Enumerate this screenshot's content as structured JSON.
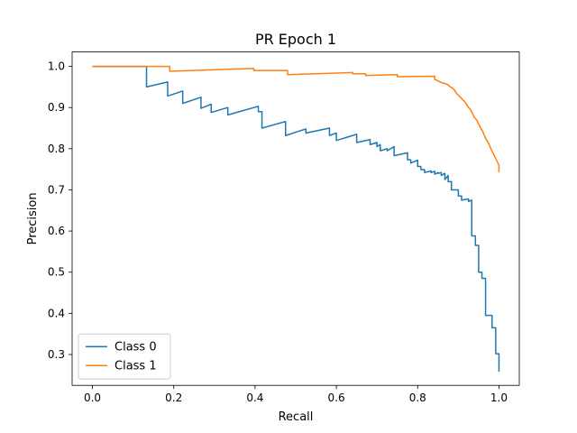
{
  "chart_data": {
    "type": "line",
    "title": "PR Epoch 1",
    "xlabel": "Recall",
    "ylabel": "Precision",
    "xlim": [
      -0.05,
      1.05
    ],
    "ylim": [
      0.225,
      1.035
    ],
    "xticks": [
      0.0,
      0.2,
      0.4,
      0.6,
      0.8,
      1.0
    ],
    "xtick_labels": [
      "0.0",
      "0.2",
      "0.4",
      "0.6",
      "0.8",
      "1.0"
    ],
    "yticks": [
      0.3,
      0.4,
      0.5,
      0.6,
      0.7,
      0.8,
      0.9,
      1.0
    ],
    "ytick_labels": [
      "0.3",
      "0.4",
      "0.5",
      "0.6",
      "0.7",
      "0.8",
      "0.9",
      "1.0"
    ],
    "grid": false,
    "legend": {
      "position": "lower-left"
    },
    "series": [
      {
        "name": "Class 0",
        "color": "#1f77b4",
        "step": "post",
        "points": [
          [
            0.0,
            1.0
          ],
          [
            0.133,
            1.0
          ],
          [
            0.133,
            0.95
          ],
          [
            0.185,
            0.962
          ],
          [
            0.185,
            0.928
          ],
          [
            0.222,
            0.94
          ],
          [
            0.222,
            0.91
          ],
          [
            0.267,
            0.925
          ],
          [
            0.267,
            0.898
          ],
          [
            0.292,
            0.908
          ],
          [
            0.292,
            0.888
          ],
          [
            0.333,
            0.9
          ],
          [
            0.333,
            0.882
          ],
          [
            0.408,
            0.903
          ],
          [
            0.408,
            0.89
          ],
          [
            0.417,
            0.89
          ],
          [
            0.417,
            0.85
          ],
          [
            0.475,
            0.866
          ],
          [
            0.475,
            0.832
          ],
          [
            0.525,
            0.848
          ],
          [
            0.525,
            0.838
          ],
          [
            0.583,
            0.85
          ],
          [
            0.583,
            0.832
          ],
          [
            0.6,
            0.838
          ],
          [
            0.6,
            0.82
          ],
          [
            0.65,
            0.835
          ],
          [
            0.65,
            0.815
          ],
          [
            0.683,
            0.822
          ],
          [
            0.683,
            0.81
          ],
          [
            0.7,
            0.815
          ],
          [
            0.7,
            0.805
          ],
          [
            0.708,
            0.81
          ],
          [
            0.708,
            0.795
          ],
          [
            0.725,
            0.8
          ],
          [
            0.725,
            0.795
          ],
          [
            0.742,
            0.805
          ],
          [
            0.742,
            0.783
          ],
          [
            0.775,
            0.79
          ],
          [
            0.775,
            0.773
          ],
          [
            0.783,
            0.773
          ],
          [
            0.783,
            0.765
          ],
          [
            0.8,
            0.772
          ],
          [
            0.8,
            0.757
          ],
          [
            0.808,
            0.757
          ],
          [
            0.808,
            0.749
          ],
          [
            0.817,
            0.749
          ],
          [
            0.817,
            0.742
          ],
          [
            0.833,
            0.746
          ],
          [
            0.833,
            0.742
          ],
          [
            0.842,
            0.745
          ],
          [
            0.842,
            0.738
          ],
          [
            0.85,
            0.742
          ],
          [
            0.85,
            0.74
          ],
          [
            0.858,
            0.742
          ],
          [
            0.858,
            0.735
          ],
          [
            0.867,
            0.74
          ],
          [
            0.867,
            0.725
          ],
          [
            0.875,
            0.735
          ],
          [
            0.875,
            0.72
          ],
          [
            0.883,
            0.72
          ],
          [
            0.883,
            0.7
          ],
          [
            0.9,
            0.7
          ],
          [
            0.9,
            0.685
          ],
          [
            0.908,
            0.685
          ],
          [
            0.908,
            0.675
          ],
          [
            0.925,
            0.678
          ],
          [
            0.925,
            0.672
          ],
          [
            0.933,
            0.675
          ],
          [
            0.933,
            0.588
          ],
          [
            0.942,
            0.588
          ],
          [
            0.942,
            0.565
          ],
          [
            0.95,
            0.565
          ],
          [
            0.95,
            0.5
          ],
          [
            0.958,
            0.5
          ],
          [
            0.958,
            0.485
          ],
          [
            0.967,
            0.485
          ],
          [
            0.967,
            0.395
          ],
          [
            0.983,
            0.395
          ],
          [
            0.983,
            0.365
          ],
          [
            0.992,
            0.365
          ],
          [
            0.992,
            0.302
          ],
          [
            1.0,
            0.302
          ],
          [
            1.0,
            0.258
          ]
        ]
      },
      {
        "name": "Class 1",
        "color": "#ff7f0e",
        "step": "post",
        "points": [
          [
            0.0,
            1.0
          ],
          [
            0.19,
            1.0
          ],
          [
            0.19,
            0.988
          ],
          [
            0.397,
            0.995
          ],
          [
            0.397,
            0.99
          ],
          [
            0.48,
            0.99
          ],
          [
            0.48,
            0.98
          ],
          [
            0.64,
            0.985
          ],
          [
            0.64,
            0.982
          ],
          [
            0.672,
            0.982
          ],
          [
            0.672,
            0.978
          ],
          [
            0.75,
            0.98
          ],
          [
            0.75,
            0.975
          ],
          [
            0.842,
            0.976
          ],
          [
            0.842,
            0.968
          ],
          [
            0.85,
            0.965
          ],
          [
            0.855,
            0.962
          ],
          [
            0.86,
            0.96
          ],
          [
            0.868,
            0.958
          ],
          [
            0.875,
            0.955
          ],
          [
            0.88,
            0.95
          ],
          [
            0.885,
            0.948
          ],
          [
            0.89,
            0.943
          ],
          [
            0.895,
            0.935
          ],
          [
            0.9,
            0.93
          ],
          [
            0.905,
            0.925
          ],
          [
            0.91,
            0.92
          ],
          [
            0.915,
            0.915
          ],
          [
            0.92,
            0.908
          ],
          [
            0.925,
            0.9
          ],
          [
            0.93,
            0.895
          ],
          [
            0.935,
            0.885
          ],
          [
            0.94,
            0.875
          ],
          [
            0.945,
            0.87
          ],
          [
            0.95,
            0.86
          ],
          [
            0.955,
            0.85
          ],
          [
            0.96,
            0.842
          ],
          [
            0.965,
            0.83
          ],
          [
            0.97,
            0.82
          ],
          [
            0.975,
            0.812
          ],
          [
            0.98,
            0.8
          ],
          [
            0.985,
            0.79
          ],
          [
            0.99,
            0.78
          ],
          [
            0.995,
            0.77
          ],
          [
            1.0,
            0.76
          ],
          [
            1.0,
            0.743
          ]
        ]
      }
    ]
  }
}
